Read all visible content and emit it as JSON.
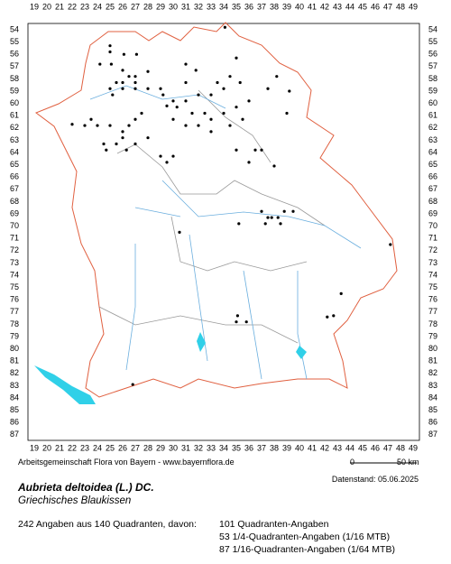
{
  "map": {
    "x_labels": [
      19,
      20,
      21,
      22,
      23,
      24,
      25,
      26,
      27,
      28,
      29,
      30,
      31,
      32,
      33,
      34,
      35,
      36,
      37,
      38,
      39,
      40,
      41,
      42,
      43,
      44,
      45,
      46,
      47,
      48,
      49
    ],
    "y_labels": [
      54,
      55,
      56,
      57,
      58,
      59,
      60,
      61,
      62,
      63,
      64,
      65,
      66,
      67,
      68,
      69,
      70,
      71,
      72,
      73,
      74,
      75,
      76,
      77,
      78,
      79,
      80,
      81,
      82,
      83,
      84,
      85,
      86,
      87
    ],
    "points": [
      [
        34.1,
        53.8
      ],
      [
        25,
        55.3
      ],
      [
        25,
        55.8
      ],
      [
        26.1,
        56
      ],
      [
        27.1,
        56
      ],
      [
        24.2,
        56.8
      ],
      [
        25.1,
        56.8
      ],
      [
        26,
        57.3
      ],
      [
        26.5,
        57.8
      ],
      [
        27,
        57.8
      ],
      [
        25.5,
        58.3
      ],
      [
        26,
        58.3
      ],
      [
        27,
        58.3
      ],
      [
        28,
        57.4
      ],
      [
        25,
        58.8
      ],
      [
        25.2,
        59.3
      ],
      [
        26,
        58.8
      ],
      [
        27,
        58.8
      ],
      [
        28,
        58.8
      ],
      [
        29,
        58.8
      ],
      [
        31,
        56.8
      ],
      [
        31.8,
        57.3
      ],
      [
        31,
        58.3
      ],
      [
        33.5,
        58.3
      ],
      [
        34.5,
        57.8
      ],
      [
        35,
        56.3
      ],
      [
        35.3,
        58.3
      ],
      [
        34,
        58.8
      ],
      [
        33,
        59.3
      ],
      [
        32,
        59.3
      ],
      [
        31,
        59.8
      ],
      [
        30,
        59.8
      ],
      [
        29.5,
        60.2
      ],
      [
        30.3,
        60.3
      ],
      [
        31.5,
        60.8
      ],
      [
        32.5,
        60.8
      ],
      [
        33,
        61.3
      ],
      [
        34,
        60.8
      ],
      [
        35,
        60.3
      ],
      [
        36,
        59.8
      ],
      [
        35.5,
        61.3
      ],
      [
        34.5,
        61.8
      ],
      [
        33,
        62.3
      ],
      [
        32,
        61.8
      ],
      [
        31,
        61.8
      ],
      [
        30,
        61.3
      ],
      [
        29.2,
        59.3
      ],
      [
        38.2,
        57.8
      ],
      [
        37.5,
        58.8
      ],
      [
        39,
        60.8
      ],
      [
        39.2,
        59
      ],
      [
        27,
        61.3
      ],
      [
        26.5,
        61.8
      ],
      [
        27.5,
        60.8
      ],
      [
        26,
        62.3
      ],
      [
        26,
        62.8
      ],
      [
        27,
        63.3
      ],
      [
        26.3,
        63.8
      ],
      [
        25.5,
        63.3
      ],
      [
        24.7,
        63.8
      ],
      [
        24.5,
        63.3
      ],
      [
        23,
        61.8
      ],
      [
        23.5,
        61.3
      ],
      [
        22,
        61.7
      ],
      [
        24,
        61.8
      ],
      [
        25,
        61.8
      ],
      [
        28,
        62.8
      ],
      [
        29,
        64.3
      ],
      [
        29.5,
        64.8
      ],
      [
        30,
        64.3
      ],
      [
        35,
        63.8
      ],
      [
        36.5,
        63.8
      ],
      [
        37,
        63.8
      ],
      [
        36,
        64.8
      ],
      [
        38,
        65.1
      ],
      [
        37,
        68.8
      ],
      [
        37.5,
        69.3
      ],
      [
        37.3,
        69.8
      ],
      [
        37.8,
        69.3
      ],
      [
        38.3,
        69.3
      ],
      [
        38.8,
        68.8
      ],
      [
        39.5,
        68.8
      ],
      [
        38.5,
        69.8
      ],
      [
        35.2,
        69.8
      ],
      [
        30.5,
        70.5
      ],
      [
        47.2,
        71.5
      ],
      [
        43.3,
        75.5
      ],
      [
        42.7,
        77.3
      ],
      [
        42.2,
        77.4
      ],
      [
        35.1,
        77.3
      ],
      [
        35,
        77.8
      ],
      [
        35.8,
        77.8
      ],
      [
        26.8,
        82.9
      ]
    ]
  },
  "credit": "Arbeitsgemeinschaft Flora von Bayern - www.bayernflora.de",
  "scale": {
    "start": "0",
    "end": "50 km"
  },
  "date": "Datenstand: 05.06.2025",
  "title": "Aubrieta deltoidea (L.) DC.",
  "subtitle": "Griechisches Blaukissen",
  "summary": "242 Angaben aus 140 Quadranten, davon:",
  "breakdown": [
    "101 Quadranten-Angaben",
    "53 1/4-Quadranten-Angaben (1/16 MTB)",
    "87 1/16-Quadranten-Angaben (1/64 MTB)"
  ]
}
